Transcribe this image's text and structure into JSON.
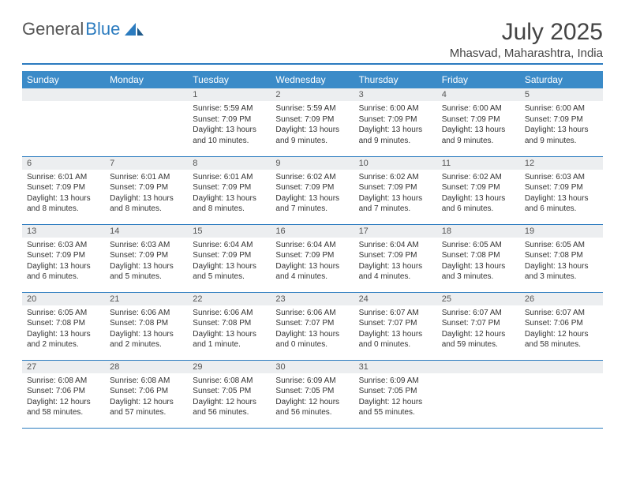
{
  "logo": {
    "part1": "General",
    "part2": "Blue"
  },
  "title": "July 2025",
  "location": "Mhasvad, Maharashtra, India",
  "colors": {
    "header_bg": "#3b8bc8",
    "accent_line": "#2b7bbf",
    "daynum_bg": "#eceef0",
    "text": "#333333"
  },
  "day_headers": [
    "Sunday",
    "Monday",
    "Tuesday",
    "Wednesday",
    "Thursday",
    "Friday",
    "Saturday"
  ],
  "weeks": [
    [
      {
        "n": "",
        "sunrise": "",
        "sunset": "",
        "daylight": ""
      },
      {
        "n": "",
        "sunrise": "",
        "sunset": "",
        "daylight": ""
      },
      {
        "n": "1",
        "sunrise": "Sunrise: 5:59 AM",
        "sunset": "Sunset: 7:09 PM",
        "daylight": "Daylight: 13 hours and 10 minutes."
      },
      {
        "n": "2",
        "sunrise": "Sunrise: 5:59 AM",
        "sunset": "Sunset: 7:09 PM",
        "daylight": "Daylight: 13 hours and 9 minutes."
      },
      {
        "n": "3",
        "sunrise": "Sunrise: 6:00 AM",
        "sunset": "Sunset: 7:09 PM",
        "daylight": "Daylight: 13 hours and 9 minutes."
      },
      {
        "n": "4",
        "sunrise": "Sunrise: 6:00 AM",
        "sunset": "Sunset: 7:09 PM",
        "daylight": "Daylight: 13 hours and 9 minutes."
      },
      {
        "n": "5",
        "sunrise": "Sunrise: 6:00 AM",
        "sunset": "Sunset: 7:09 PM",
        "daylight": "Daylight: 13 hours and 9 minutes."
      }
    ],
    [
      {
        "n": "6",
        "sunrise": "Sunrise: 6:01 AM",
        "sunset": "Sunset: 7:09 PM",
        "daylight": "Daylight: 13 hours and 8 minutes."
      },
      {
        "n": "7",
        "sunrise": "Sunrise: 6:01 AM",
        "sunset": "Sunset: 7:09 PM",
        "daylight": "Daylight: 13 hours and 8 minutes."
      },
      {
        "n": "8",
        "sunrise": "Sunrise: 6:01 AM",
        "sunset": "Sunset: 7:09 PM",
        "daylight": "Daylight: 13 hours and 8 minutes."
      },
      {
        "n": "9",
        "sunrise": "Sunrise: 6:02 AM",
        "sunset": "Sunset: 7:09 PM",
        "daylight": "Daylight: 13 hours and 7 minutes."
      },
      {
        "n": "10",
        "sunrise": "Sunrise: 6:02 AM",
        "sunset": "Sunset: 7:09 PM",
        "daylight": "Daylight: 13 hours and 7 minutes."
      },
      {
        "n": "11",
        "sunrise": "Sunrise: 6:02 AM",
        "sunset": "Sunset: 7:09 PM",
        "daylight": "Daylight: 13 hours and 6 minutes."
      },
      {
        "n": "12",
        "sunrise": "Sunrise: 6:03 AM",
        "sunset": "Sunset: 7:09 PM",
        "daylight": "Daylight: 13 hours and 6 minutes."
      }
    ],
    [
      {
        "n": "13",
        "sunrise": "Sunrise: 6:03 AM",
        "sunset": "Sunset: 7:09 PM",
        "daylight": "Daylight: 13 hours and 6 minutes."
      },
      {
        "n": "14",
        "sunrise": "Sunrise: 6:03 AM",
        "sunset": "Sunset: 7:09 PM",
        "daylight": "Daylight: 13 hours and 5 minutes."
      },
      {
        "n": "15",
        "sunrise": "Sunrise: 6:04 AM",
        "sunset": "Sunset: 7:09 PM",
        "daylight": "Daylight: 13 hours and 5 minutes."
      },
      {
        "n": "16",
        "sunrise": "Sunrise: 6:04 AM",
        "sunset": "Sunset: 7:09 PM",
        "daylight": "Daylight: 13 hours and 4 minutes."
      },
      {
        "n": "17",
        "sunrise": "Sunrise: 6:04 AM",
        "sunset": "Sunset: 7:09 PM",
        "daylight": "Daylight: 13 hours and 4 minutes."
      },
      {
        "n": "18",
        "sunrise": "Sunrise: 6:05 AM",
        "sunset": "Sunset: 7:08 PM",
        "daylight": "Daylight: 13 hours and 3 minutes."
      },
      {
        "n": "19",
        "sunrise": "Sunrise: 6:05 AM",
        "sunset": "Sunset: 7:08 PM",
        "daylight": "Daylight: 13 hours and 3 minutes."
      }
    ],
    [
      {
        "n": "20",
        "sunrise": "Sunrise: 6:05 AM",
        "sunset": "Sunset: 7:08 PM",
        "daylight": "Daylight: 13 hours and 2 minutes."
      },
      {
        "n": "21",
        "sunrise": "Sunrise: 6:06 AM",
        "sunset": "Sunset: 7:08 PM",
        "daylight": "Daylight: 13 hours and 2 minutes."
      },
      {
        "n": "22",
        "sunrise": "Sunrise: 6:06 AM",
        "sunset": "Sunset: 7:08 PM",
        "daylight": "Daylight: 13 hours and 1 minute."
      },
      {
        "n": "23",
        "sunrise": "Sunrise: 6:06 AM",
        "sunset": "Sunset: 7:07 PM",
        "daylight": "Daylight: 13 hours and 0 minutes."
      },
      {
        "n": "24",
        "sunrise": "Sunrise: 6:07 AM",
        "sunset": "Sunset: 7:07 PM",
        "daylight": "Daylight: 13 hours and 0 minutes."
      },
      {
        "n": "25",
        "sunrise": "Sunrise: 6:07 AM",
        "sunset": "Sunset: 7:07 PM",
        "daylight": "Daylight: 12 hours and 59 minutes."
      },
      {
        "n": "26",
        "sunrise": "Sunrise: 6:07 AM",
        "sunset": "Sunset: 7:06 PM",
        "daylight": "Daylight: 12 hours and 58 minutes."
      }
    ],
    [
      {
        "n": "27",
        "sunrise": "Sunrise: 6:08 AM",
        "sunset": "Sunset: 7:06 PM",
        "daylight": "Daylight: 12 hours and 58 minutes."
      },
      {
        "n": "28",
        "sunrise": "Sunrise: 6:08 AM",
        "sunset": "Sunset: 7:06 PM",
        "daylight": "Daylight: 12 hours and 57 minutes."
      },
      {
        "n": "29",
        "sunrise": "Sunrise: 6:08 AM",
        "sunset": "Sunset: 7:05 PM",
        "daylight": "Daylight: 12 hours and 56 minutes."
      },
      {
        "n": "30",
        "sunrise": "Sunrise: 6:09 AM",
        "sunset": "Sunset: 7:05 PM",
        "daylight": "Daylight: 12 hours and 56 minutes."
      },
      {
        "n": "31",
        "sunrise": "Sunrise: 6:09 AM",
        "sunset": "Sunset: 7:05 PM",
        "daylight": "Daylight: 12 hours and 55 minutes."
      },
      {
        "n": "",
        "sunrise": "",
        "sunset": "",
        "daylight": ""
      },
      {
        "n": "",
        "sunrise": "",
        "sunset": "",
        "daylight": ""
      }
    ]
  ]
}
